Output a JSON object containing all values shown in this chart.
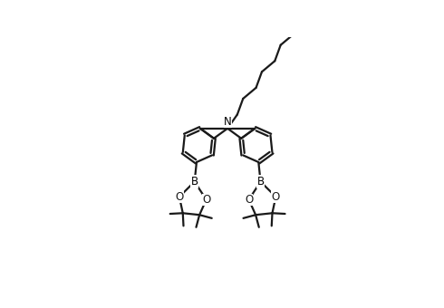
{
  "bg_color": "#ffffff",
  "line_color": "#1a1a1a",
  "line_width": 1.6,
  "text_color": "#000000",
  "font_size": 8.5,
  "xlim": [
    0,
    10
  ],
  "ylim": [
    0,
    7
  ]
}
